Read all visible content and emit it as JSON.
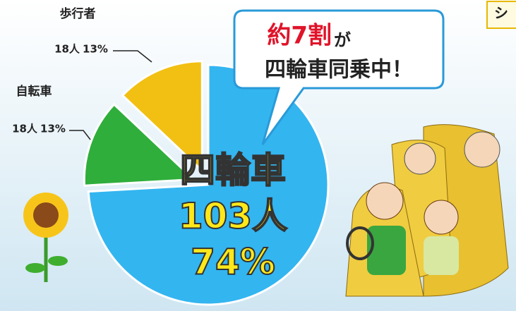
{
  "chart_data": {
    "type": "pie",
    "categories": [
      "四輪車",
      "自転車",
      "歩行者"
    ],
    "values": [
      103,
      18,
      18
    ],
    "value_labels": [
      "103人",
      "18人",
      "18人"
    ],
    "percents": [
      74,
      13,
      13
    ],
    "percent_labels": [
      "74%",
      "13%",
      "13%"
    ],
    "colors": [
      "#33b5f0",
      "#2fae3c",
      "#f2c012"
    ],
    "callout": {
      "highlight": "約7割",
      "text": "が",
      "line2": "四輪車同乗中！"
    },
    "corner_text": "シ"
  }
}
